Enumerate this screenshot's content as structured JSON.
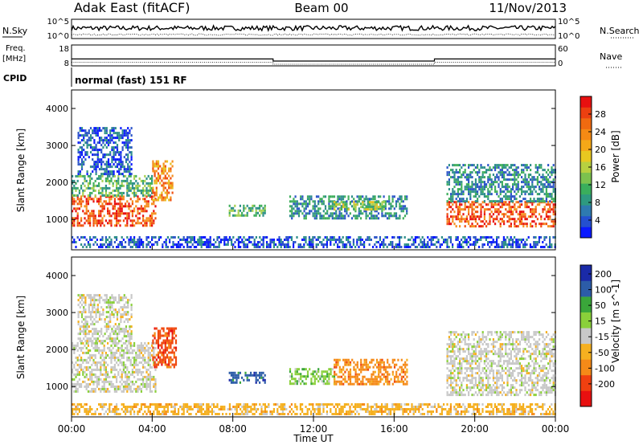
{
  "header": {
    "station": "Adak East (fitACF)",
    "beam": "Beam 00",
    "date": "11/Nov/2013"
  },
  "panels": {
    "nsky": {
      "label": "N.Sky",
      "right_label": "N.Search",
      "left_ticks": [
        "10^5",
        "10^0"
      ],
      "right_ticks": [
        "10^5",
        "10^0"
      ]
    },
    "freq": {
      "label_line1": "Freq.",
      "label_line2": "[MHz]",
      "right_label": "Nave",
      "left_ticks": [
        "18",
        "8"
      ],
      "right_ticks": [
        "60",
        "0"
      ]
    },
    "cpid": {
      "label": "CPID",
      "text": "normal (fast) 151 RF"
    }
  },
  "colors": {
    "power_scale": [
      "#0a1aff",
      "#2c55c8",
      "#2e8f8a",
      "#3fae5c",
      "#a8d050",
      "#e8c020",
      "#f59020",
      "#f05010",
      "#e81010"
    ],
    "velocity_scale": [
      "#e81010",
      "#f04a10",
      "#f58a18",
      "#f5b020",
      "#c8c8c8",
      "#8ad03a",
      "#3aa63a",
      "#2c5ca8",
      "#1a2aa8"
    ],
    "power_colorbar": [
      "#0a1aff",
      "#2450d0",
      "#2e7ab0",
      "#2e9a80",
      "#3aae5c",
      "#7cc24e",
      "#b8d040",
      "#e8c820",
      "#f5a818",
      "#f58a14",
      "#f06a10",
      "#ec4010",
      "#e81010"
    ],
    "velocity_colorbar": [
      "#e81010",
      "#f04010",
      "#f58a18",
      "#f5b020",
      "#c8c8c8",
      "#8ad03a",
      "#3aa63a",
      "#2c5ca8",
      "#1a2aa8"
    ]
  },
  "chart_data": [
    {
      "type": "heatmap",
      "name": "power",
      "ylabel": "Slant Range [km]",
      "xlabel": "Time UT",
      "xlim": [
        0,
        24
      ],
      "ylim": [
        180,
        4500
      ],
      "yticks": [
        1000,
        2000,
        3000,
        4000
      ],
      "colorbar_label": "Power [dB]",
      "colorbar_ticks": [
        4,
        8,
        12,
        16,
        20,
        24,
        28
      ],
      "colorbar_range": [
        0,
        32
      ],
      "regions": [
        {
          "t0": 0.0,
          "t1": 4.2,
          "r0": 850,
          "r1": 1650,
          "level": 7
        },
        {
          "t0": 0.0,
          "t1": 4.0,
          "r0": 1650,
          "r1": 2200,
          "level": 3
        },
        {
          "t0": 0.3,
          "t1": 3.0,
          "r0": 2200,
          "r1": 3500,
          "level": 1
        },
        {
          "t0": 4.0,
          "t1": 5.0,
          "r0": 1500,
          "r1": 2600,
          "level": 6
        },
        {
          "t0": 7.8,
          "t1": 9.6,
          "r0": 1100,
          "r1": 1400,
          "level": 3
        },
        {
          "t0": 10.8,
          "t1": 16.6,
          "r0": 1050,
          "r1": 1650,
          "level": 2
        },
        {
          "t0": 13.0,
          "t1": 15.5,
          "r0": 1250,
          "r1": 1500,
          "level": 4
        },
        {
          "t0": 18.6,
          "t1": 24.0,
          "r0": 800,
          "r1": 1500,
          "level": 7
        },
        {
          "t0": 18.6,
          "t1": 24.0,
          "r0": 1500,
          "r1": 2500,
          "level": 2
        },
        {
          "t0": 0.0,
          "t1": 24.0,
          "r0": 250,
          "r1": 550,
          "level": 1
        }
      ]
    },
    {
      "type": "heatmap",
      "name": "velocity",
      "ylabel": "Slant Range [km]",
      "xlabel": "Time UT",
      "xlim": [
        0,
        24
      ],
      "ylim": [
        180,
        4500
      ],
      "yticks": [
        1000,
        2000,
        3000,
        4000
      ],
      "colorbar_label": "Velocity [m s^-1]",
      "colorbar_ticks": [
        200,
        100,
        50,
        15,
        -15,
        -50,
        -100,
        -200
      ],
      "regions": [
        {
          "t0": 0.0,
          "t1": 4.2,
          "r0": 850,
          "r1": 2200,
          "cls": 4
        },
        {
          "t0": 0.3,
          "t1": 3.0,
          "r0": 2200,
          "r1": 3500,
          "cls": 4
        },
        {
          "t0": 4.0,
          "t1": 5.2,
          "r0": 1500,
          "r1": 2600,
          "cls": 1
        },
        {
          "t0": 7.8,
          "t1": 9.6,
          "r0": 1100,
          "r1": 1400,
          "cls": 7
        },
        {
          "t0": 10.8,
          "t1": 13.0,
          "r0": 1050,
          "r1": 1500,
          "cls": 5
        },
        {
          "t0": 13.0,
          "t1": 16.6,
          "r0": 1050,
          "r1": 1750,
          "cls": 2
        },
        {
          "t0": 18.6,
          "t1": 24.0,
          "r0": 800,
          "r1": 2500,
          "cls": 4
        },
        {
          "t0": 0.0,
          "t1": 24.0,
          "r0": 250,
          "r1": 550,
          "cls": 3
        }
      ]
    }
  ],
  "xaxis": {
    "ticks": [
      "00:00",
      "04:00",
      "08:00",
      "12:00",
      "16:00",
      "20:00",
      "00:00"
    ],
    "tick_values": [
      0,
      4,
      8,
      12,
      16,
      20,
      24
    ],
    "label": "Time UT"
  },
  "frequency_series": {
    "x": [
      0,
      10,
      10,
      18,
      18,
      24
    ],
    "mhz": [
      11.3,
      11.3,
      10.3,
      10.3,
      11.3,
      11.3
    ]
  }
}
